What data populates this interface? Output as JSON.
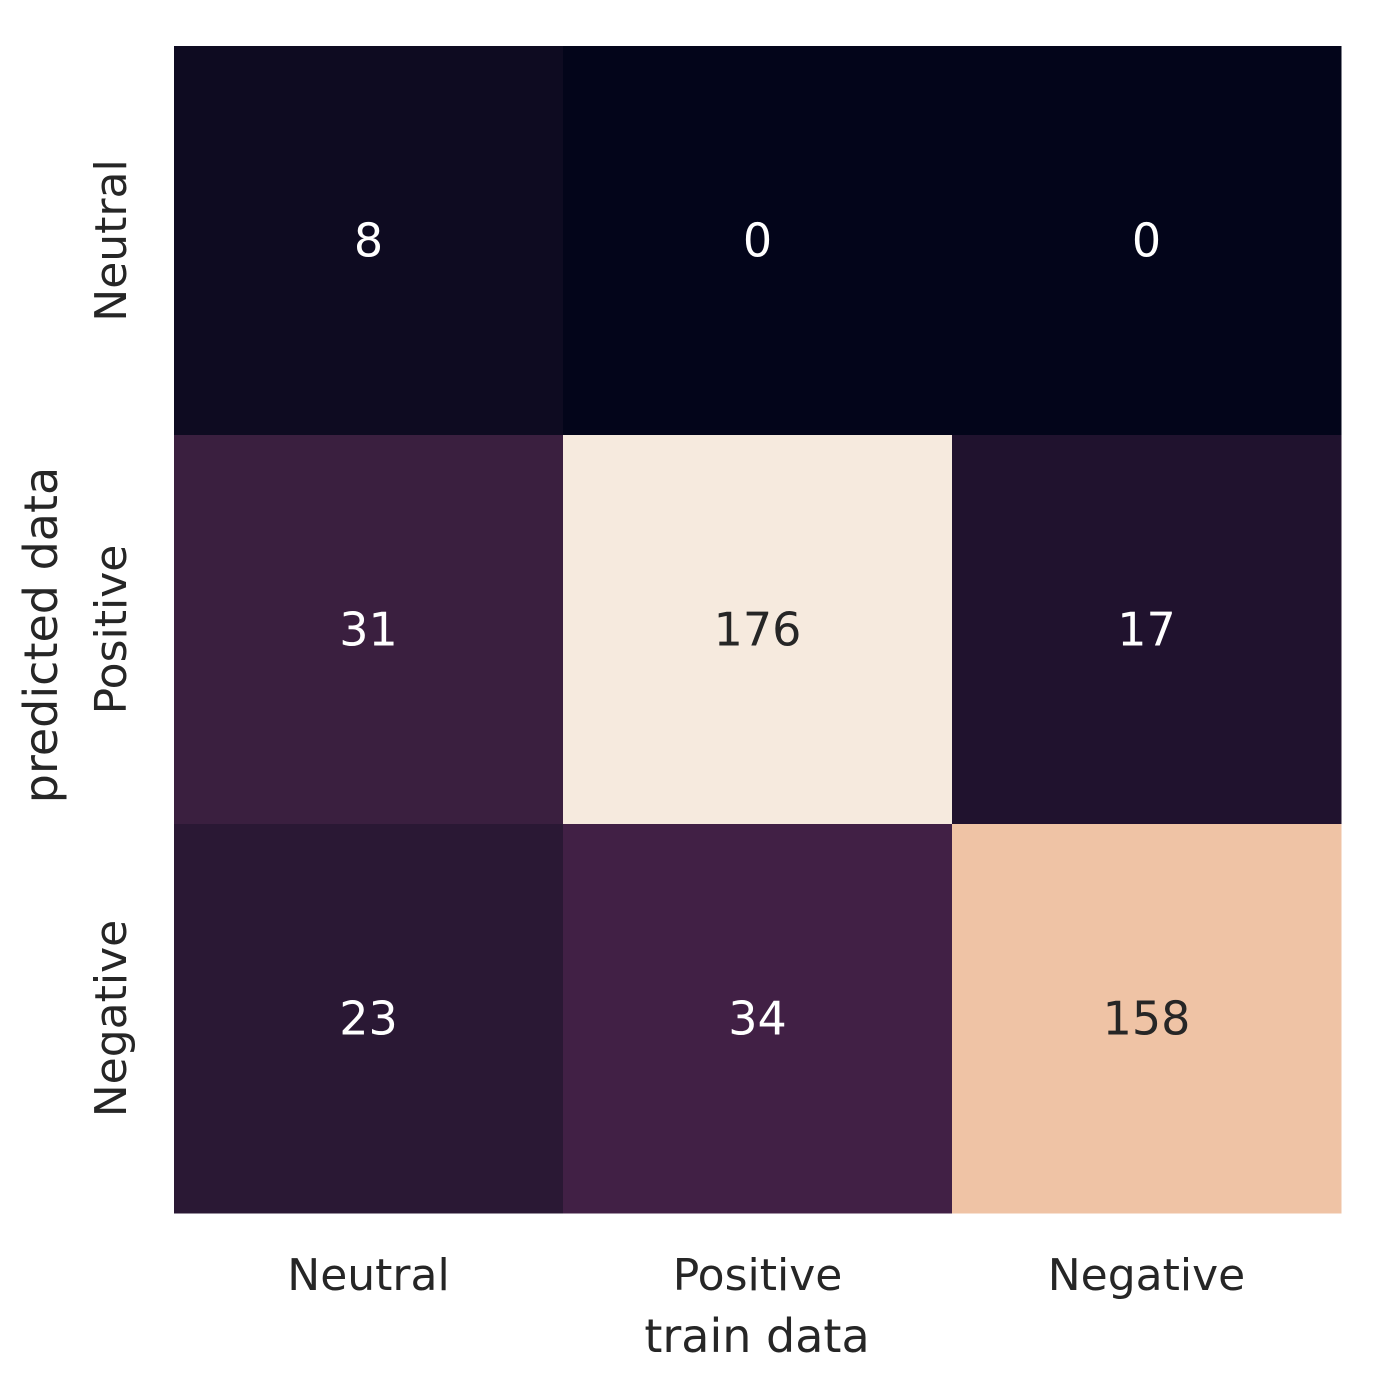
{
  "chart_data": {
    "type": "heatmap",
    "title": "",
    "xlabel": "train data",
    "ylabel": "predicted data",
    "x_categories": [
      "Neutral",
      "Positive",
      "Negative"
    ],
    "y_categories": [
      "Neutral",
      "Positive",
      "Negative"
    ],
    "values": [
      [
        8,
        0,
        0
      ],
      [
        31,
        176,
        17
      ],
      [
        23,
        34,
        158
      ]
    ],
    "value_range": [
      0,
      176
    ],
    "colormap": "rocket",
    "colorbar": false,
    "grid": false
  }
}
